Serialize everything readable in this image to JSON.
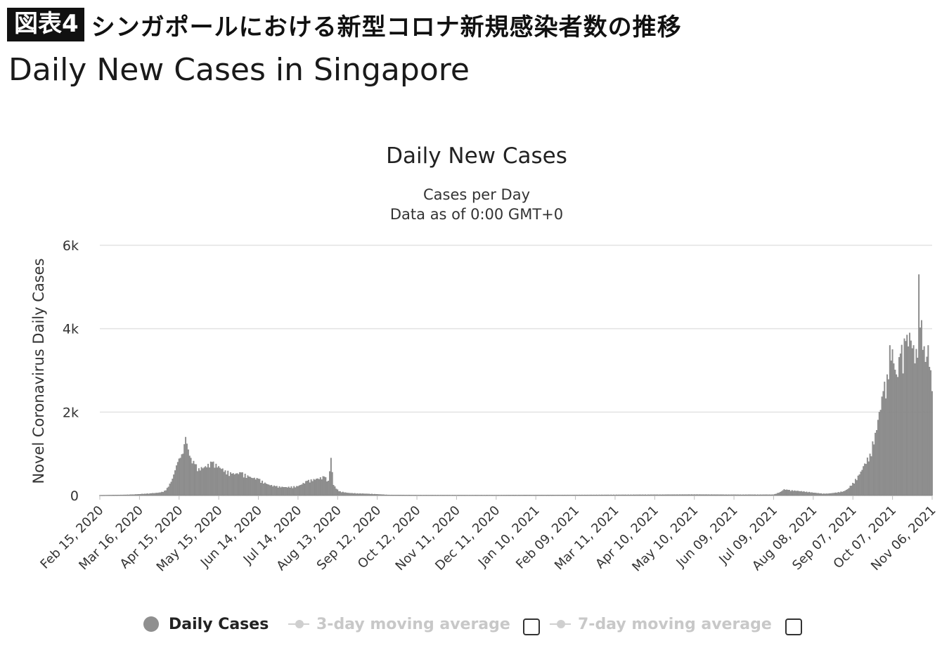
{
  "header": {
    "badge": "図表4",
    "title_ja": "シンガポールにおける新型コロナ新規感染者数の推移",
    "title_en": "Daily New Cases in Singapore"
  },
  "legend": {
    "daily_label": "Daily Cases",
    "ma3_label": "3-day moving average",
    "ma7_label": "7-day moving average"
  },
  "colors": {
    "bar": "#8f8f8f",
    "grid": "#e3e3e3",
    "disabled": "#c8c8c8"
  },
  "chart_data": {
    "type": "bar",
    "title": "Daily New Cases",
    "subtitle": [
      "Cases per Day",
      "Data as of 0:00 GMT+0"
    ],
    "ylabel": "Novel Coronavirus Daily Cases",
    "xlabel": "",
    "ylim": [
      0,
      6000
    ],
    "yticks": [
      0,
      2000,
      4000,
      6000
    ],
    "ytick_labels": [
      "0",
      "2k",
      "4k",
      "6k"
    ],
    "x_start": "Feb 15, 2020",
    "x_end": "Nov 06, 2021",
    "xtick_labels": [
      "Feb 15, 2020",
      "Mar 16, 2020",
      "Apr 15, 2020",
      "May 15, 2020",
      "Jun 14, 2020",
      "Jul 14, 2020",
      "Aug 13, 2020",
      "Sep 12, 2020",
      "Oct 12, 2020",
      "Nov 11, 2020",
      "Dec 11, 2020",
      "Jan 10, 2021",
      "Feb 09, 2021",
      "Mar 11, 2021",
      "Apr 10, 2021",
      "May 10, 2021",
      "Jun 09, 2021",
      "Jul 09, 2021",
      "Aug 08, 2021",
      "Sep 07, 2021",
      "Oct 07, 2021",
      "Nov 06, 2021"
    ],
    "grid": true,
    "legend_position": "bottom",
    "series": [
      {
        "name": "Daily Cases",
        "points": [
          [
            "Feb 15, 2020",
            5
          ],
          [
            "Mar 10, 2020",
            20
          ],
          [
            "Mar 25, 2020",
            50
          ],
          [
            "Apr 01, 2020",
            70
          ],
          [
            "Apr 05, 2020",
            120
          ],
          [
            "Apr 08, 2020",
            280
          ],
          [
            "Apr 10, 2020",
            400
          ],
          [
            "Apr 12, 2020",
            600
          ],
          [
            "Apr 14, 2020",
            800
          ],
          [
            "Apr 16, 2020",
            900
          ],
          [
            "Apr 18, 2020",
            1000
          ],
          [
            "Apr 20, 2020",
            1400
          ],
          [
            "Apr 22, 2020",
            1100
          ],
          [
            "Apr 24, 2020",
            900
          ],
          [
            "Apr 27, 2020",
            750
          ],
          [
            "Apr 30, 2020",
            650
          ],
          [
            "May 05, 2020",
            700
          ],
          [
            "May 10, 2020",
            800
          ],
          [
            "May 15, 2020",
            700
          ],
          [
            "May 20, 2020",
            600
          ],
          [
            "May 25, 2020",
            520
          ],
          [
            "Jun 01, 2020",
            550
          ],
          [
            "Jun 07, 2020",
            450
          ],
          [
            "Jun 14, 2020",
            400
          ],
          [
            "Jun 20, 2020",
            280
          ],
          [
            "Jun 27, 2020",
            220
          ],
          [
            "Jul 05, 2020",
            200
          ],
          [
            "Jul 14, 2020",
            220
          ],
          [
            "Jul 21, 2020",
            350
          ],
          [
            "Jul 28, 2020",
            400
          ],
          [
            "Aug 03, 2020",
            450
          ],
          [
            "Aug 06, 2020",
            350
          ],
          [
            "Aug 08, 2020",
            900
          ],
          [
            "Aug 10, 2020",
            250
          ],
          [
            "Aug 14, 2020",
            100
          ],
          [
            "Aug 21, 2020",
            60
          ],
          [
            "Aug 28, 2020",
            50
          ],
          [
            "Sep 05, 2020",
            40
          ],
          [
            "Sep 12, 2020",
            30
          ],
          [
            "Sep 20, 2020",
            15
          ],
          [
            "Oct 12, 2020",
            10
          ],
          [
            "Dec 11, 2020",
            10
          ],
          [
            "Feb 09, 2021",
            15
          ],
          [
            "Apr 10, 2021",
            20
          ],
          [
            "May 10, 2021",
            25
          ],
          [
            "Jun 09, 2021",
            20
          ],
          [
            "Jul 09, 2021",
            20
          ],
          [
            "Jul 14, 2021",
            80
          ],
          [
            "Jul 17, 2021",
            150
          ],
          [
            "Jul 20, 2021",
            130
          ],
          [
            "Jul 27, 2021",
            110
          ],
          [
            "Aug 03, 2021",
            90
          ],
          [
            "Aug 10, 2021",
            60
          ],
          [
            "Aug 17, 2021",
            40
          ],
          [
            "Aug 24, 2021",
            60
          ],
          [
            "Aug 31, 2021",
            100
          ],
          [
            "Sep 03, 2021",
            150
          ],
          [
            "Sep 07, 2021",
            300
          ],
          [
            "Sep 12, 2021",
            500
          ],
          [
            "Sep 15, 2021",
            700
          ],
          [
            "Sep 20, 2021",
            1000
          ],
          [
            "Sep 24, 2021",
            1500
          ],
          [
            "Sep 27, 2021",
            2000
          ],
          [
            "Sep 30, 2021",
            2500
          ],
          [
            "Oct 03, 2021",
            2900
          ],
          [
            "Oct 05, 2021",
            3600
          ],
          [
            "Oct 07, 2021",
            3500
          ],
          [
            "Oct 10, 2021",
            2900
          ],
          [
            "Oct 13, 2021",
            3400
          ],
          [
            "Oct 17, 2021",
            3700
          ],
          [
            "Oct 20, 2021",
            3900
          ],
          [
            "Oct 23, 2021",
            3600
          ],
          [
            "Oct 26, 2021",
            3300
          ],
          [
            "Oct 27, 2021",
            5300
          ],
          [
            "Oct 29, 2021",
            4200
          ],
          [
            "Nov 01, 2021",
            3200
          ],
          [
            "Nov 03, 2021",
            3600
          ],
          [
            "Nov 05, 2021",
            3000
          ],
          [
            "Nov 06, 2021",
            2500
          ]
        ]
      }
    ]
  }
}
